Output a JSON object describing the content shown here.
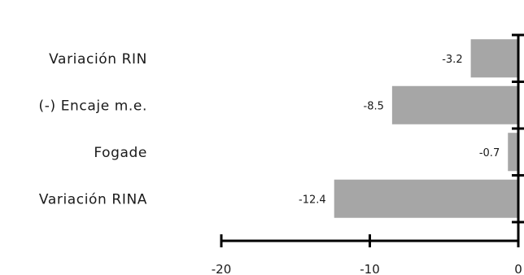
{
  "chart_data": {
    "type": "bar",
    "orientation": "horizontal",
    "categories": [
      "Variación RIN",
      "(-) Encaje m.e.",
      "Fogade",
      "Variación RINA"
    ],
    "values": [
      -3.2,
      -8.5,
      -0.7,
      -12.4
    ],
    "data_labels": [
      "-3.2",
      "-8.5",
      "-0.7",
      "-12.4"
    ],
    "x_ticks": [
      -20,
      -10,
      0
    ],
    "x_tick_labels": [
      "-20",
      "-10",
      "0"
    ],
    "xlim": [
      -20,
      0
    ],
    "grid": false,
    "legend": "none",
    "bar_color": "#a6a6a6",
    "axis_color": "#000000"
  }
}
